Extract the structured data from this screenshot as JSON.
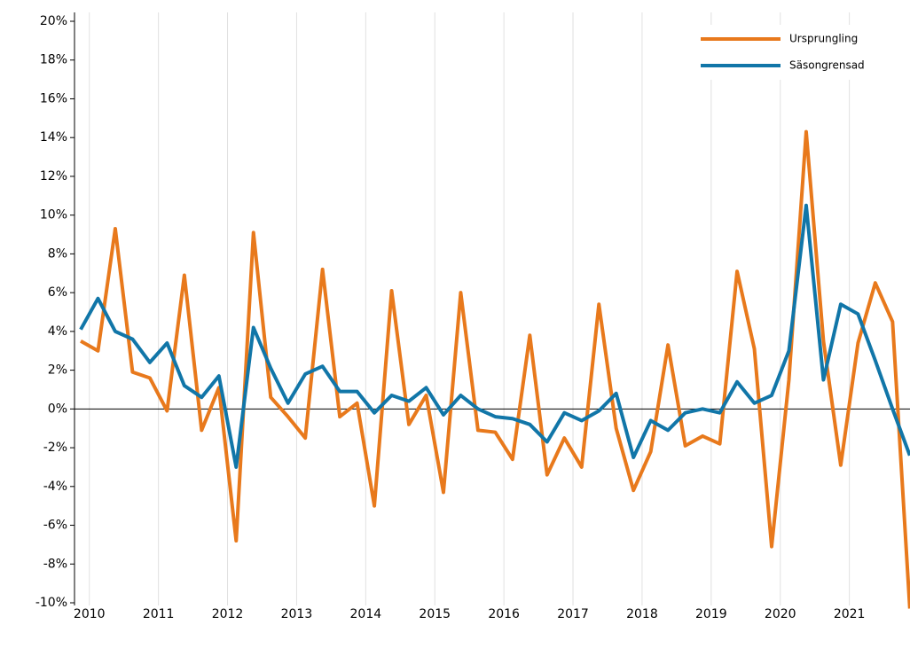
{
  "chart_data": {
    "type": "line",
    "categories": [
      "2010",
      null,
      null,
      null,
      "2011",
      null,
      null,
      null,
      "2012",
      null,
      null,
      null,
      "2013",
      null,
      null,
      null,
      "2014",
      null,
      null,
      null,
      "2015",
      null,
      null,
      null,
      "2016",
      null,
      null,
      null,
      "2017",
      null,
      null,
      null,
      "2018",
      null,
      null,
      null,
      "2019",
      null,
      null,
      null,
      "2020",
      null,
      null,
      null,
      "2021",
      null,
      null,
      null,
      null
    ],
    "series": [
      {
        "name": "Ursprungling",
        "color": "#e8791c",
        "values": [
          3.5,
          3.0,
          9.3,
          1.9,
          1.6,
          -0.1,
          6.9,
          -1.1,
          1.1,
          -6.8,
          9.1,
          0.6,
          -0.4,
          -1.5,
          7.2,
          -0.4,
          0.3,
          -5.0,
          6.1,
          -0.8,
          0.7,
          -4.3,
          6.0,
          -1.1,
          -1.2,
          -2.6,
          3.8,
          -3.4,
          -1.5,
          -3.0,
          5.4,
          -1.0,
          -4.2,
          -2.2,
          3.3,
          -1.9,
          -1.4,
          -1.8,
          7.1,
          3.1,
          -7.1,
          1.5,
          14.3,
          3.5,
          -2.9,
          3.4,
          6.5,
          4.5,
          -10.3
        ]
      },
      {
        "name": "Säsongrensad",
        "color": "#1176a8",
        "values": [
          4.1,
          5.7,
          4.0,
          3.6,
          2.4,
          3.4,
          1.2,
          0.6,
          1.7,
          -3.0,
          4.2,
          2.1,
          0.3,
          1.8,
          2.2,
          0.9,
          0.9,
          -0.2,
          0.7,
          0.4,
          1.1,
          -0.3,
          0.7,
          0.0,
          -0.4,
          -0.5,
          -0.8,
          -1.7,
          -0.2,
          -0.6,
          -0.1,
          0.8,
          -2.5,
          -0.6,
          -1.1,
          -0.2,
          0.0,
          -0.2,
          1.4,
          0.3,
          0.7,
          3.0,
          10.5,
          1.5,
          5.4,
          4.9,
          2.5,
          0.0,
          -2.4
        ]
      }
    ],
    "ylim": [
      -10,
      20
    ],
    "yticks": [
      {
        "value": -10,
        "label": "-10%"
      },
      {
        "value": -8,
        "label": "-8%"
      },
      {
        "value": -6,
        "label": "-6%"
      },
      {
        "value": -4,
        "label": "-4%"
      },
      {
        "value": -2,
        "label": "-2%"
      },
      {
        "value": 0,
        "label": "0%"
      },
      {
        "value": 2,
        "label": "2%"
      },
      {
        "value": 4,
        "label": "4%"
      },
      {
        "value": 6,
        "label": "6%"
      },
      {
        "value": 8,
        "label": "8%"
      },
      {
        "value": 10,
        "label": "10%"
      },
      {
        "value": 12,
        "label": "12%"
      },
      {
        "value": 14,
        "label": "14%"
      },
      {
        "value": 16,
        "label": "16%"
      },
      {
        "value": 18,
        "label": "18%"
      },
      {
        "value": 20,
        "label": "20%"
      }
    ],
    "zero_line": true,
    "grid": "x",
    "legend": "top-right"
  }
}
